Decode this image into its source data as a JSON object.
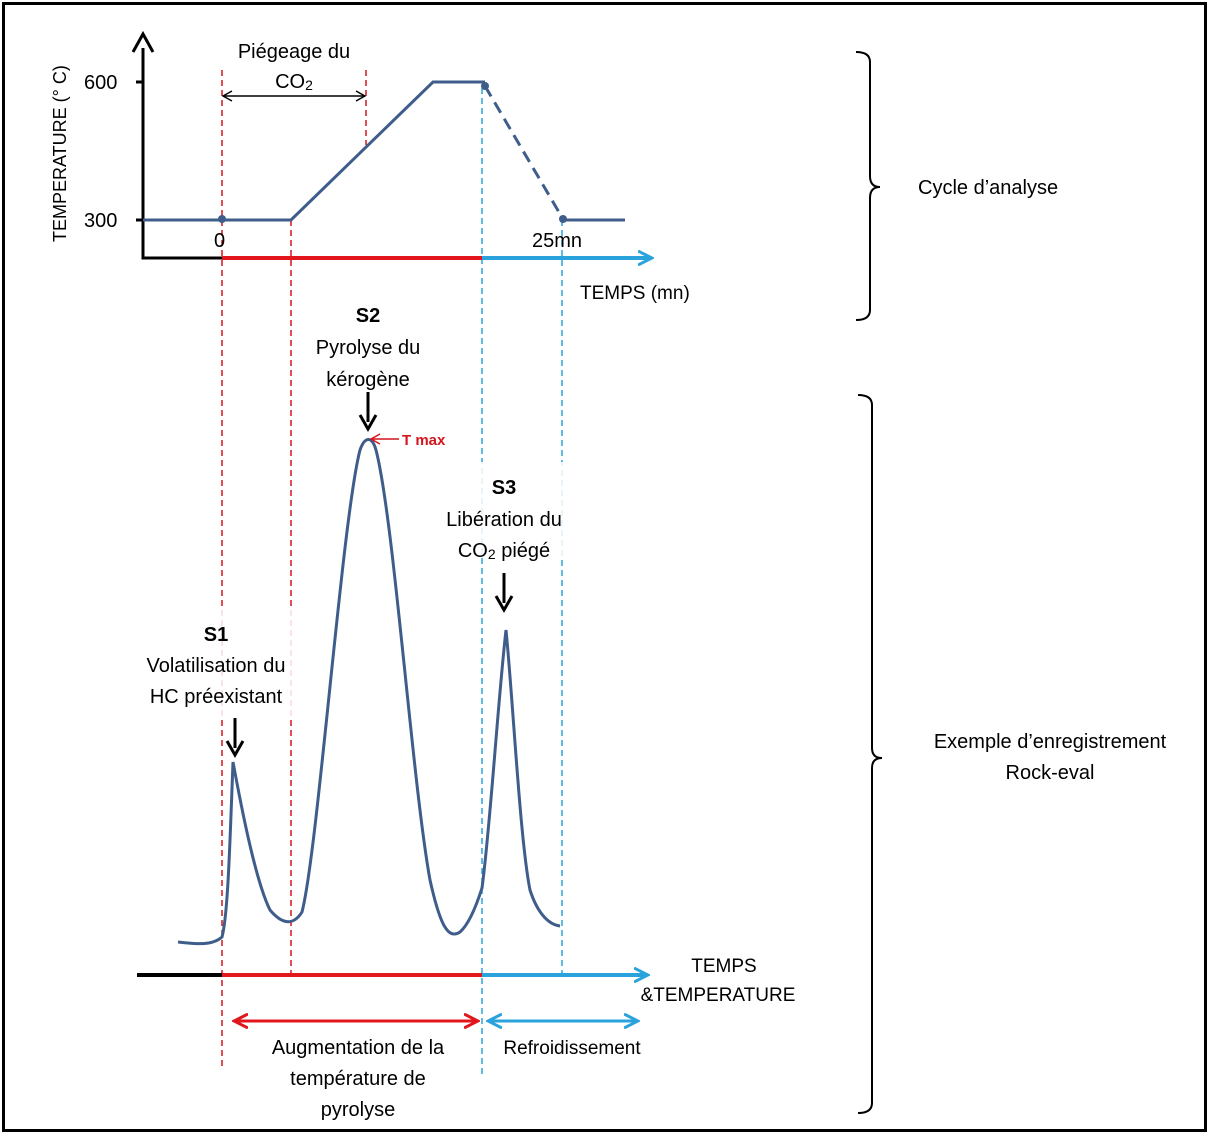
{
  "colors": {
    "curve": "#3f5d8a",
    "red": "#e2161d",
    "blue": "#2aa3dc",
    "dashed_red": "#d4151d",
    "dashed_blue": "#2aa3dc",
    "black": "#000000"
  },
  "top_chart": {
    "y_axis_label": "TEMPERATURE (° C)",
    "y_tick_600": "600",
    "y_tick_300": "300",
    "x_tick_0": "0",
    "x_tick_25": "25mn",
    "x_axis_label": "TEMPS (mn)",
    "trap_label_line1": "Piégeage du",
    "trap_label_line2_main": "CO",
    "trap_label_line2_sub": "2"
  },
  "brackets": {
    "cycle_label": "Cycle d’analyse",
    "record_label_line1": "Exemple d’enregistrement",
    "record_label_line2": "Rock-eval"
  },
  "peaks": {
    "s1": {
      "id": "S1",
      "line1": "Volatilisation du",
      "line2": "HC préexistant"
    },
    "s2": {
      "id": "S2",
      "line1": "Pyrolyse du",
      "line2": "kérogène",
      "tmax": "T max"
    },
    "s3": {
      "id": "S3",
      "line1": "Libération du",
      "line2_main": "CO",
      "line2_sub": "2",
      "line2_tail": " piégé"
    }
  },
  "bottom_chart": {
    "x_label_line1": "TEMPS",
    "x_label_line2": "&TEMPERATURE",
    "heating_line1": "Augmentation de la",
    "heating_line2": "température de",
    "heating_line3": "pyrolyse",
    "cooling": "Refroidissement"
  }
}
